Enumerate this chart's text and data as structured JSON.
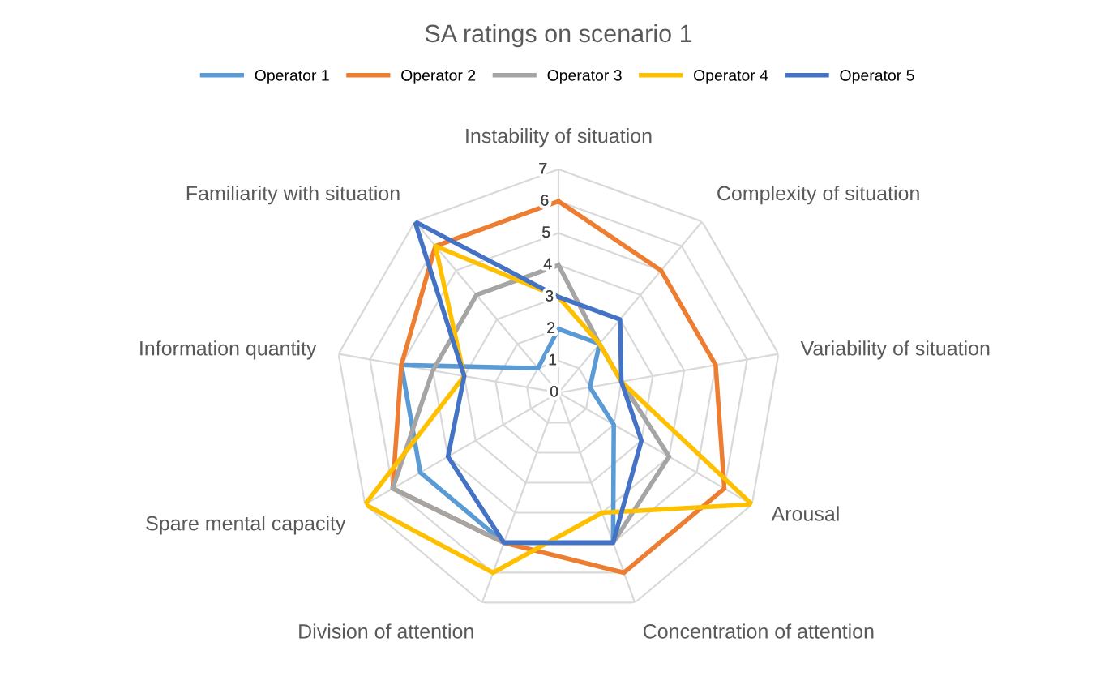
{
  "chart_data": {
    "type": "radar",
    "title": "SA ratings on scenario 1",
    "categories": [
      "Instability of situation",
      "Complexity of situation",
      "Variability of situation",
      "Arousal",
      "Concentration of attention",
      "Division of attention",
      "Spare mental capacity",
      "Information quantity",
      "Familiarity with situation"
    ],
    "series": [
      {
        "name": "Operator 1",
        "color": "#5b9bd5",
        "values": [
          2,
          2,
          1,
          2,
          5,
          5,
          5,
          5,
          1
        ]
      },
      {
        "name": "Operator 2",
        "color": "#ed7d31",
        "values": [
          6,
          5,
          5,
          6,
          6,
          5,
          6,
          5,
          6
        ]
      },
      {
        "name": "Operator 3",
        "color": "#a5a5a5",
        "values": [
          4,
          2,
          2,
          4,
          5,
          5,
          6,
          4,
          4
        ]
      },
      {
        "name": "Operator 4",
        "color": "#ffc000",
        "values": [
          3,
          2,
          2,
          7,
          4,
          6,
          7,
          3,
          6
        ]
      },
      {
        "name": "Operator 5",
        "color": "#4472c4",
        "values": [
          3,
          3,
          2,
          3,
          5,
          5,
          4,
          3,
          7
        ]
      }
    ],
    "ylim": [
      0,
      7
    ],
    "yticks": [
      0,
      1,
      2,
      3,
      4,
      5,
      6,
      7
    ],
    "grid": true,
    "legend": "top",
    "marker": "none",
    "line_style": "solid"
  }
}
